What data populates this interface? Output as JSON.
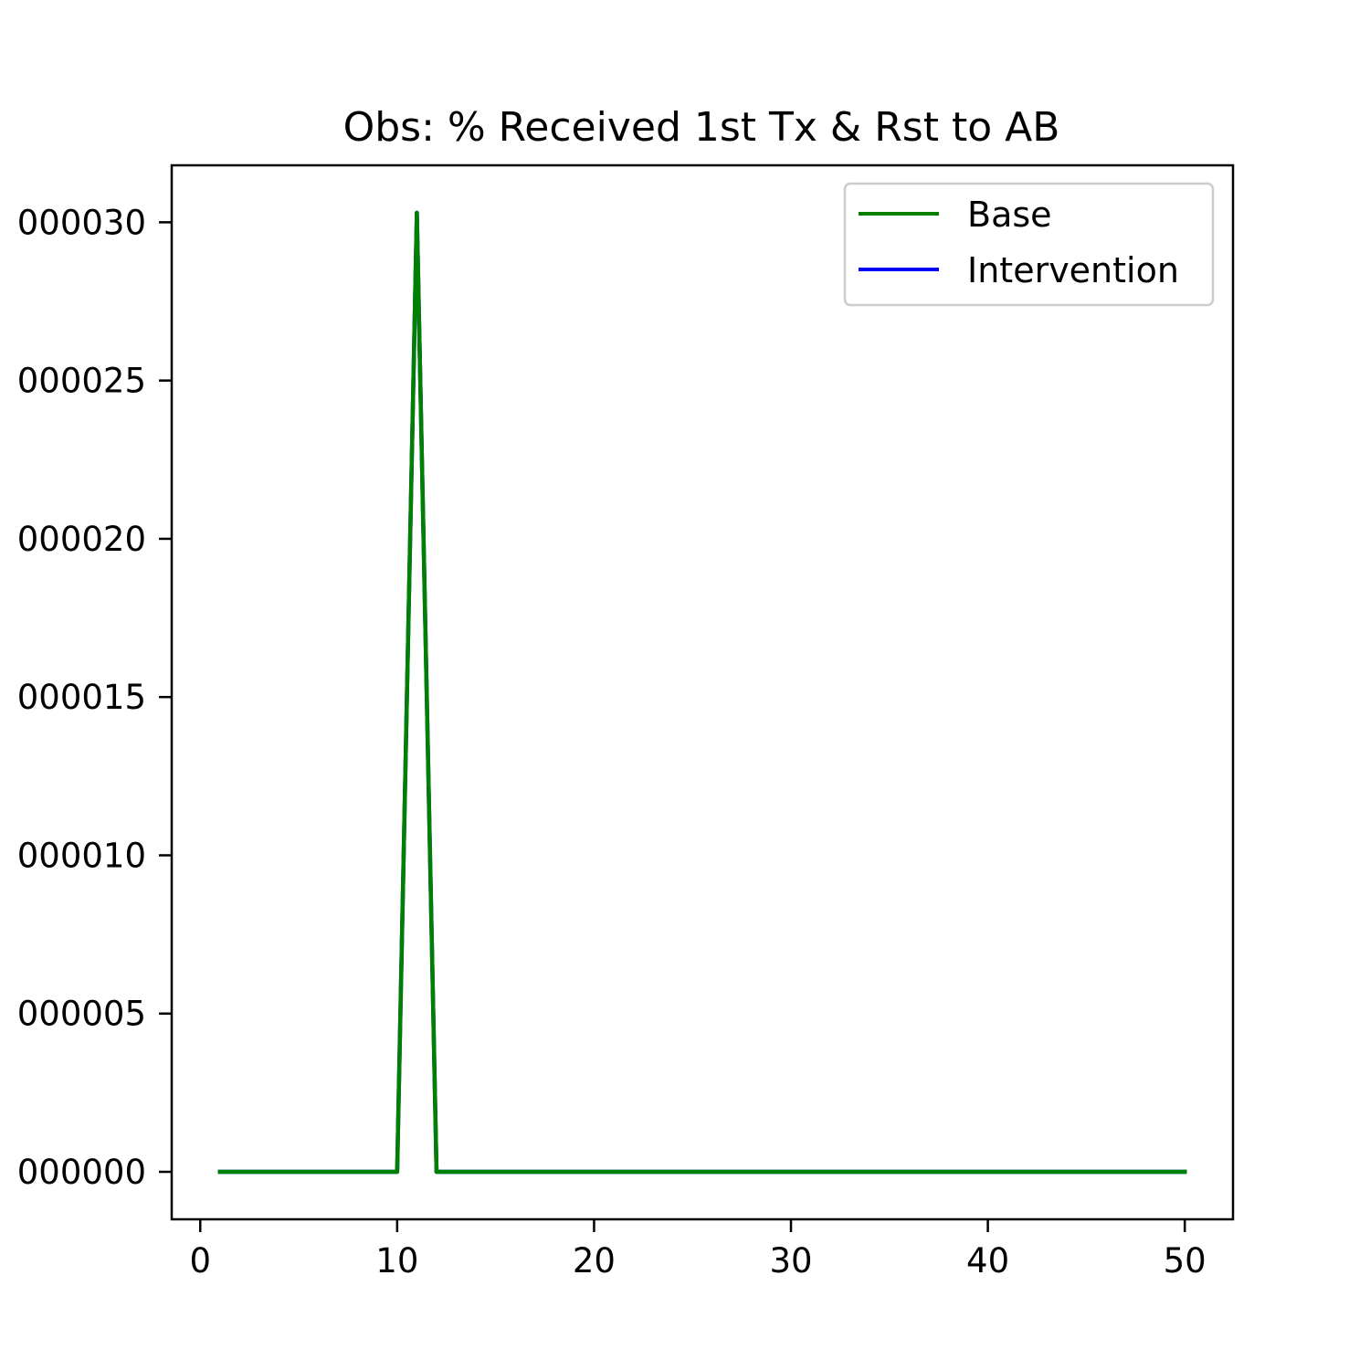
{
  "chart_data": {
    "type": "line",
    "title": "Obs: % Received 1st Tx & Rst to AB",
    "xlabel": "",
    "ylabel": "",
    "xlim": [
      -1.45,
      52.45
    ],
    "ylim": [
      -1.5e-06,
      3.18e-05
    ],
    "xticks": [
      0,
      10,
      20,
      30,
      40,
      50
    ],
    "xtick_labels": [
      "0",
      "10",
      "20",
      "30",
      "40",
      "50"
    ],
    "yticks": [
      0,
      5e-06,
      1e-05,
      1.5e-05,
      2e-05,
      2.5e-05,
      3e-05
    ],
    "ytick_labels": [
      "000000",
      "000005",
      "000010",
      "000015",
      "000020",
      "000025",
      "000030"
    ],
    "grid": false,
    "legend_position": "top-right",
    "series": [
      {
        "name": "Base",
        "color": "#008000",
        "x": [
          1,
          2,
          3,
          4,
          5,
          6,
          7,
          8,
          9,
          10,
          11,
          12,
          13,
          14,
          15,
          16,
          17,
          18,
          19,
          20,
          21,
          22,
          23,
          24,
          25,
          26,
          27,
          28,
          29,
          30,
          31,
          32,
          33,
          34,
          35,
          36,
          37,
          38,
          39,
          40,
          41,
          42,
          43,
          44,
          45,
          46,
          47,
          48,
          49,
          50
        ],
        "y": [
          0,
          0,
          0,
          0,
          0,
          0,
          0,
          0,
          0,
          0,
          3.03e-05,
          0,
          0,
          0,
          0,
          0,
          0,
          0,
          0,
          0,
          0,
          0,
          0,
          0,
          0,
          0,
          0,
          0,
          0,
          0,
          0,
          0,
          0,
          0,
          0,
          0,
          0,
          0,
          0,
          0,
          0,
          0,
          0,
          0,
          0,
          0,
          0,
          0,
          0,
          0
        ]
      },
      {
        "name": "Intervention",
        "color": "#0000ff",
        "x": [
          1,
          2,
          3,
          4,
          5,
          6,
          7,
          8,
          9,
          10,
          11,
          12,
          13,
          14,
          15,
          16,
          17,
          18,
          19,
          20,
          21,
          22,
          23,
          24,
          25,
          26,
          27,
          28,
          29,
          30,
          31,
          32,
          33,
          34,
          35,
          36,
          37,
          38,
          39,
          40,
          41,
          42,
          43,
          44,
          45,
          46,
          47,
          48,
          49,
          50
        ],
        "y": [
          0,
          0,
          0,
          0,
          0,
          0,
          0,
          0,
          0,
          0,
          3.03e-05,
          0,
          0,
          0,
          0,
          0,
          0,
          0,
          0,
          0,
          0,
          0,
          0,
          0,
          0,
          0,
          0,
          0,
          0,
          0,
          0,
          0,
          0,
          0,
          0,
          0,
          0,
          0,
          0,
          0,
          0,
          0,
          0,
          0,
          0,
          0,
          0,
          0,
          0,
          0
        ]
      }
    ]
  }
}
